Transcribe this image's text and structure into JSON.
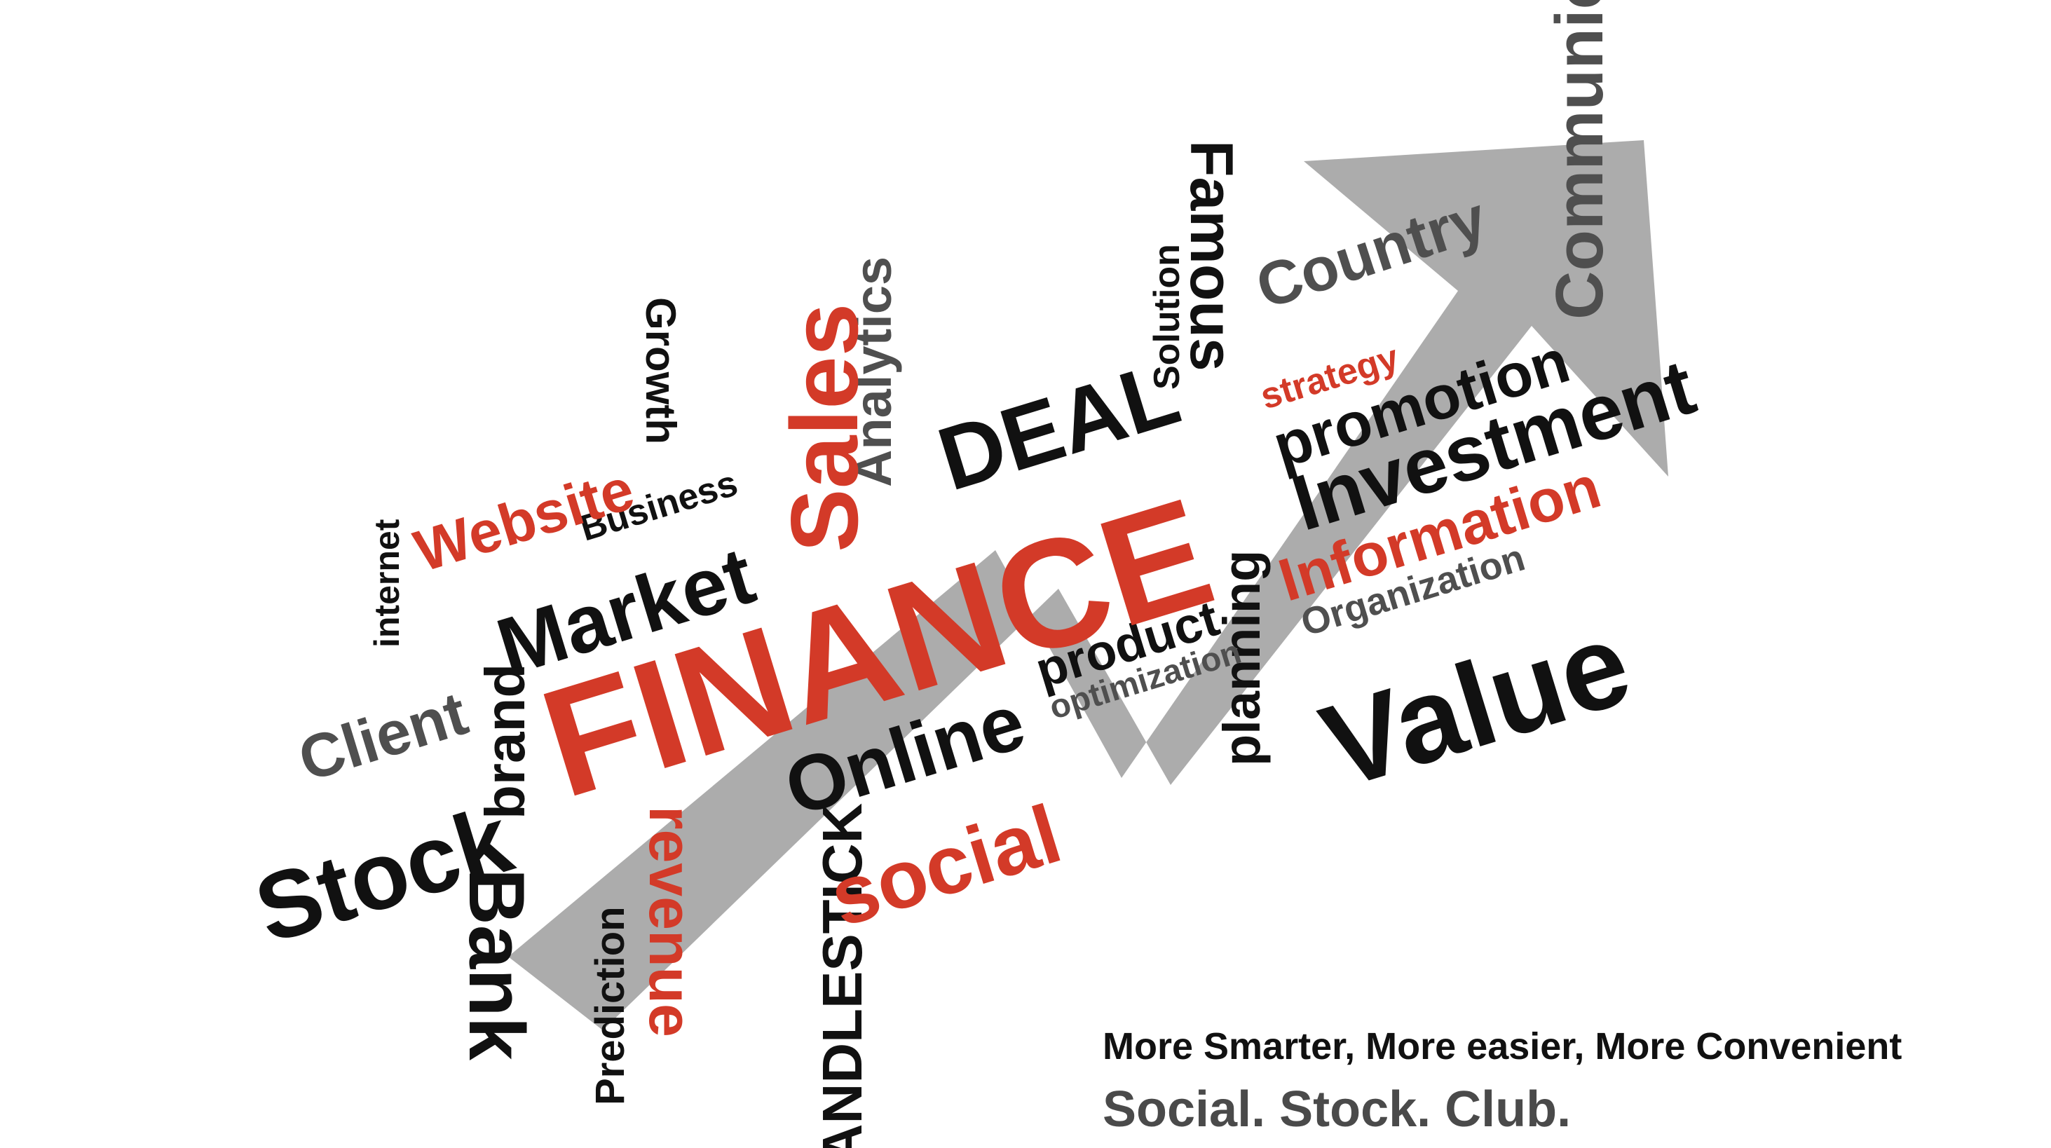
{
  "words": {
    "communication": "Communication",
    "famous": "Famous",
    "solution": "Solution",
    "country": "Country",
    "strategy": "strategy",
    "promotion": "promotion",
    "investment": "Investment",
    "information": "Information",
    "organization": "Organization",
    "value": "Value",
    "planning": "planning",
    "product": "product",
    "optimization": "optimization",
    "deal": "DEAL",
    "analytics": "Analytics",
    "sales": "Sales",
    "growth": "Growth",
    "business": "Business",
    "website": "Website",
    "internet": "internet",
    "market": "Market",
    "finance": "FINANCE",
    "client": "Client",
    "brand": "brand",
    "stock": "Stock",
    "bank": "Bank",
    "prediction": "Prediction",
    "revenue": "revenue",
    "candlestick": "CANDLESTICK",
    "online": "Online",
    "social": "social"
  },
  "tagline": {
    "line1": "More Smarter, More easier, More Convenient",
    "line2": "Social. Stock. Club."
  },
  "colors": {
    "red": "#d33a28",
    "black": "#111111",
    "gray_text": "#4f4f4f",
    "arrow": "#a6a6a6"
  }
}
